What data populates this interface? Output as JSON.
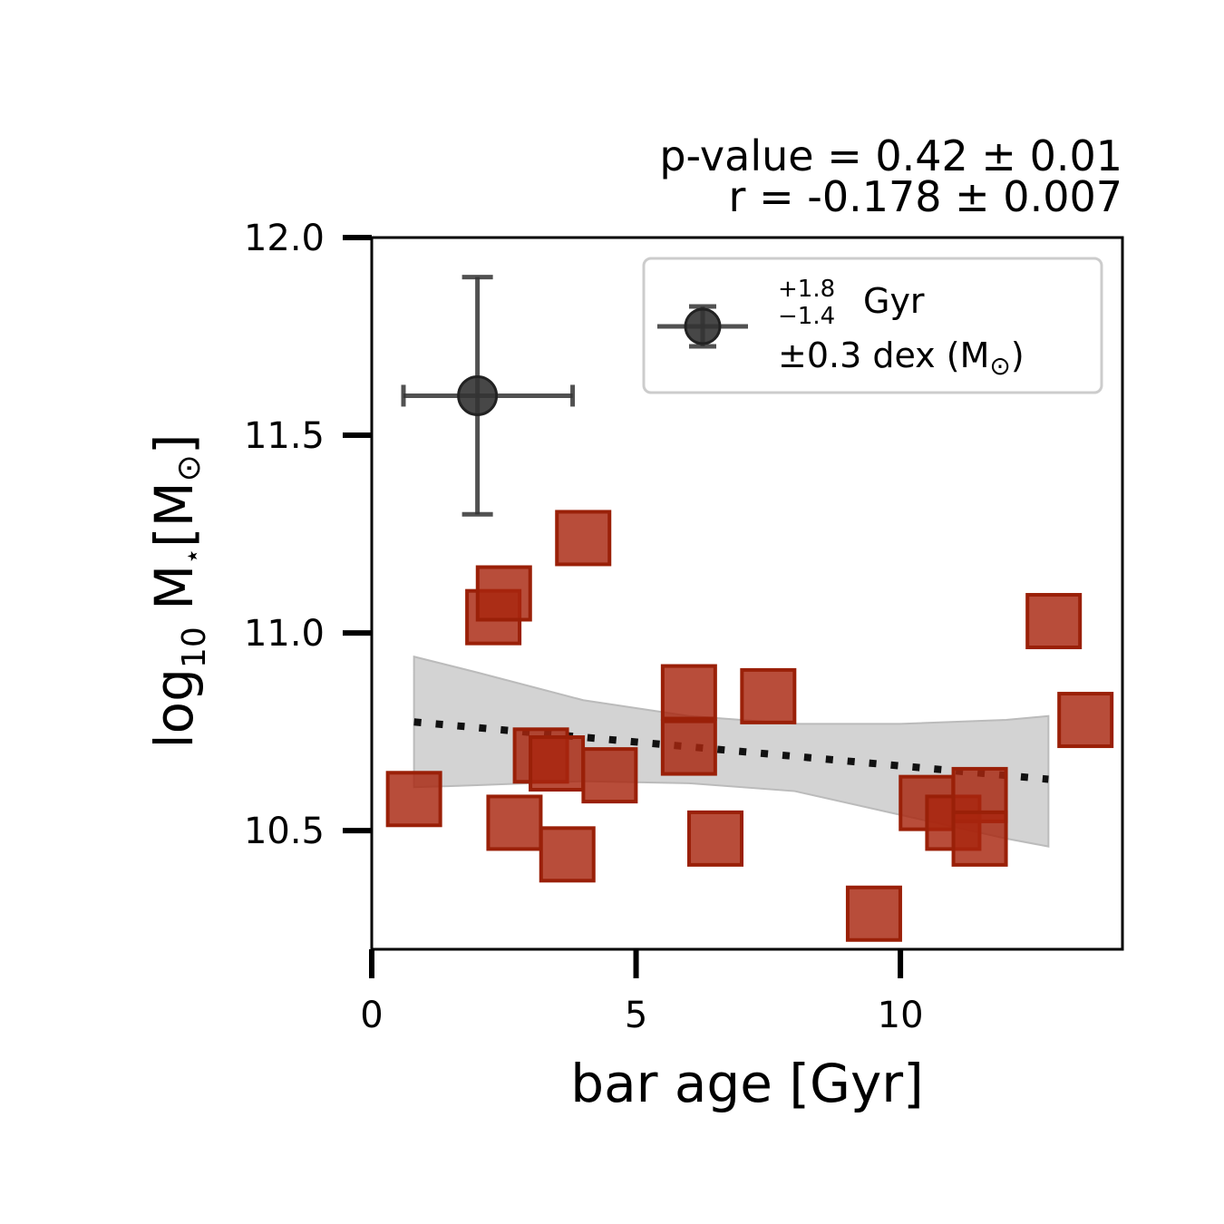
{
  "chart_data": {
    "type": "scatter",
    "title": "",
    "annotations": {
      "pvalue": "p-value = 0.42 ± 0.01",
      "r": "r = -0.178 ± 0.007"
    },
    "xlabel": "bar age [Gyr]",
    "ylabel": {
      "main": "log",
      "sub": "10",
      "mid": " M",
      "star": "⋆",
      "unit": "[M",
      "sun": "⊙",
      "close": "]"
    },
    "xlim": [
      0,
      14.2
    ],
    "ylim": [
      10.2,
      12.0
    ],
    "xticks": [
      0,
      5,
      10
    ],
    "xtick_labels": [
      "0",
      "5",
      "10"
    ],
    "yticks": [
      10.5,
      11.0,
      11.5,
      12.0
    ],
    "ytick_labels": [
      "10.5",
      "11.0",
      "11.5",
      "12.0"
    ],
    "grid": false,
    "legend_placement": "top-right",
    "legend": {
      "err_up": "+1.8",
      "err_down": "−1.4",
      "age_unit": "Gyr",
      "mass_text": "±0.3 dex (M",
      "sun": "⊙",
      "close": ")"
    },
    "series": [
      {
        "marker": "square",
        "color": "#a8260f",
        "x": [
          0.8,
          2.3,
          2.5,
          2.7,
          3.2,
          3.5,
          3.7,
          4.0,
          4.5,
          6.0,
          6.0,
          6.5,
          7.5,
          9.5,
          10.5,
          11.0,
          11.5,
          11.5,
          12.9,
          13.5
        ],
        "y": [
          10.58,
          11.04,
          11.1,
          10.52,
          10.69,
          10.67,
          10.44,
          11.24,
          10.64,
          10.85,
          10.71,
          10.48,
          10.84,
          10.29,
          10.57,
          10.52,
          10.59,
          10.48,
          11.03,
          10.78
        ]
      }
    ],
    "error_example": {
      "x": 2.0,
      "y": 11.6,
      "xerr_minus": 1.4,
      "xerr_plus": 1.8,
      "yerr": 0.3,
      "color": "#333333"
    },
    "fit_line": {
      "style": "dotted",
      "color": "#111111",
      "x": [
        0.8,
        12.8
      ],
      "y": [
        10.775,
        10.63
      ]
    },
    "confidence_band": {
      "color": "#d3d3d3",
      "x": [
        0.8,
        2.0,
        4.0,
        6.0,
        8.0,
        10.0,
        12.0,
        12.8
      ],
      "upper": [
        10.94,
        10.9,
        10.83,
        10.79,
        10.77,
        10.77,
        10.78,
        10.79
      ],
      "lower": [
        10.61,
        10.615,
        10.625,
        10.62,
        10.6,
        10.54,
        10.48,
        10.46
      ]
    }
  }
}
